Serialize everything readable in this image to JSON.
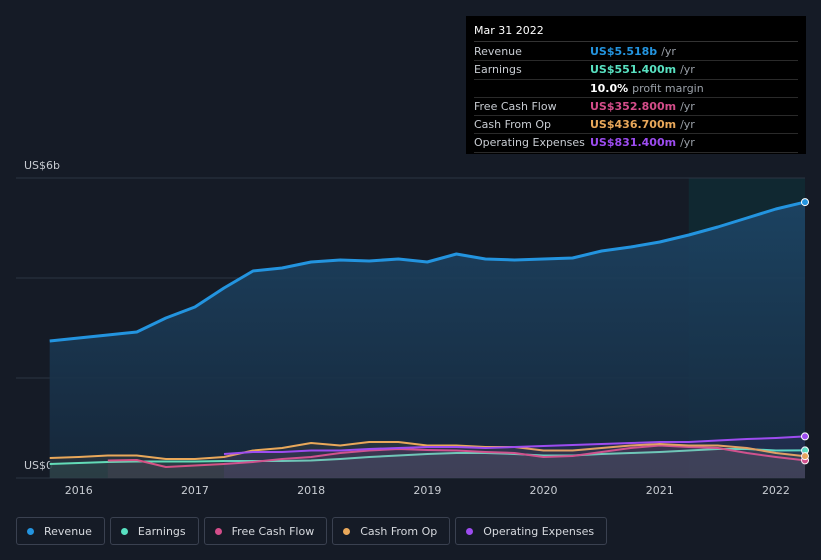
{
  "chart_data": {
    "type": "line",
    "x": [
      2015.75,
      2016.0,
      2016.25,
      2016.5,
      2016.75,
      2017.0,
      2017.25,
      2017.5,
      2017.75,
      2018.0,
      2018.25,
      2018.5,
      2018.75,
      2019.0,
      2019.25,
      2019.5,
      2019.75,
      2020.0,
      2020.25,
      2020.5,
      2020.75,
      2021.0,
      2021.25,
      2021.5,
      2021.75,
      2022.0,
      2022.25
    ],
    "series": [
      {
        "name": "Revenue",
        "color": "#2394df",
        "values": [
          2.74,
          2.8,
          2.86,
          2.92,
          3.2,
          3.42,
          3.8,
          4.14,
          4.2,
          4.32,
          4.36,
          4.34,
          4.38,
          4.32,
          4.48,
          4.38,
          4.36,
          4.38,
          4.4,
          4.54,
          4.62,
          4.72,
          4.86,
          5.02,
          5.2,
          5.38,
          5.518
        ]
      },
      {
        "name": "Earnings",
        "color": "#58e1c1",
        "values": [
          0.28,
          0.3,
          0.32,
          0.33,
          0.33,
          0.33,
          0.34,
          0.34,
          0.34,
          0.35,
          0.38,
          0.42,
          0.45,
          0.48,
          0.5,
          0.5,
          0.48,
          0.45,
          0.45,
          0.48,
          0.5,
          0.52,
          0.55,
          0.58,
          0.58,
          0.55,
          0.5514
        ]
      },
      {
        "name": "Free Cash Flow",
        "color": "#d44d8a",
        "values": [
          null,
          null,
          0.35,
          0.36,
          0.22,
          0.25,
          0.28,
          0.32,
          0.38,
          0.42,
          0.5,
          0.55,
          0.58,
          0.56,
          0.55,
          0.52,
          0.5,
          0.42,
          0.44,
          0.52,
          0.6,
          0.65,
          0.62,
          0.6,
          0.5,
          0.42,
          0.3528
        ]
      },
      {
        "name": "Cash From Op",
        "color": "#e9a85a",
        "values": [
          0.4,
          0.42,
          0.45,
          0.45,
          0.38,
          0.38,
          0.42,
          0.55,
          0.6,
          0.7,
          0.65,
          0.72,
          0.72,
          0.65,
          0.65,
          0.62,
          0.62,
          0.55,
          0.55,
          0.6,
          0.65,
          0.68,
          0.65,
          0.65,
          0.6,
          0.5,
          0.4367
        ]
      },
      {
        "name": "Operating Expenses",
        "color": "#9d4cf0",
        "values": [
          null,
          null,
          null,
          null,
          null,
          null,
          0.48,
          0.52,
          0.52,
          0.55,
          0.55,
          0.58,
          0.6,
          0.62,
          0.62,
          0.6,
          0.62,
          0.64,
          0.66,
          0.68,
          0.7,
          0.72,
          0.72,
          0.75,
          0.78,
          0.8,
          0.8314
        ]
      }
    ],
    "xlim": [
      2015.46,
      2022.25
    ],
    "xticks": [
      2016,
      2017,
      2018,
      2019,
      2020,
      2021,
      2022
    ],
    "ylim": [
      0,
      6
    ],
    "yticks": [
      {
        "value": 0,
        "label": "US$0"
      },
      {
        "value": 6,
        "label": "US$6b"
      }
    ],
    "ygrid": [
      0,
      2,
      4,
      6
    ],
    "highlight_xlim": [
      2021.25,
      2022.25
    ]
  },
  "tooltip": {
    "date": "Mar 31 2022",
    "rows": [
      {
        "label": "Revenue",
        "value": "US$5.518b",
        "unit": "/yr",
        "color": "#2394df"
      },
      {
        "label": "Earnings",
        "value": "US$551.400m",
        "unit": "/yr",
        "color": "#58e1c1"
      },
      {
        "value": "10.0%",
        "unit": "profit margin",
        "color": "#ffffff"
      },
      {
        "label": "Free Cash Flow",
        "value": "US$352.800m",
        "unit": "/yr",
        "color": "#d44d8a"
      },
      {
        "label": "Cash From Op",
        "value": "US$436.700m",
        "unit": "/yr",
        "color": "#e9a85a"
      },
      {
        "label": "Operating Expenses",
        "value": "US$831.400m",
        "unit": "/yr",
        "color": "#9d4cf0"
      }
    ]
  }
}
